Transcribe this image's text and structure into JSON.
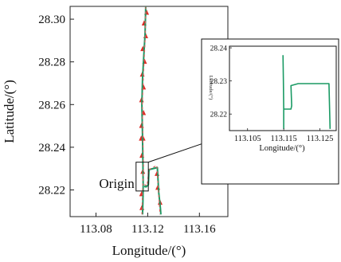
{
  "chart_data": [
    {
      "type": "line",
      "xlabel": "Longitude/(°)",
      "ylabel": "Latitude/(°)",
      "xlim": [
        113.06,
        113.182
      ],
      "ylim": [
        28.2075,
        28.306
      ],
      "x_ticks": [
        113.08,
        113.12,
        113.16
      ],
      "x_tick_labels": [
        "113.08",
        "113.12",
        "113.16"
      ],
      "y_ticks": [
        28.22,
        28.24,
        28.26,
        28.28,
        28.3
      ],
      "y_tick_labels": [
        "28.22",
        "28.24",
        "28.26",
        "28.28",
        "28.30"
      ],
      "grid": false,
      "annotation": {
        "text": "Origin",
        "x": 113.1155,
        "y": 28.2225
      },
      "origin_box": {
        "x": [
          113.111,
          113.1205
        ],
        "y": [
          28.2195,
          28.233
        ]
      },
      "series": [
        {
          "color": "#1a9a64",
          "style": "solid",
          "points": [
            [
              113.116,
              28.2085
            ],
            [
              113.1163,
              28.215
            ],
            [
              113.1165,
              28.222
            ],
            [
              113.1163,
              28.232
            ],
            [
              113.116,
              28.245
            ],
            [
              113.1155,
              28.26
            ],
            [
              113.116,
              28.272
            ],
            [
              113.117,
              28.283
            ],
            [
              113.118,
              28.293
            ],
            [
              113.1185,
              28.306
            ]
          ]
        },
        {
          "color": "#1a9a64",
          "style": "solid",
          "points": [
            [
              113.1178,
              28.222
            ],
            [
              113.118,
              28.2215
            ],
            [
              113.119,
              28.2215
            ],
            [
              113.1205,
              28.2225
            ],
            [
              113.121,
              28.2295
            ],
            [
              113.1275,
              28.2305
            ],
            [
              113.1285,
              28.219
            ],
            [
              113.1298,
              28.2115
            ],
            [
              113.1302,
              28.2085
            ]
          ]
        },
        {
          "color": "#e05a5a",
          "style": "dashed",
          "points": [
            [
              113.1155,
              28.2085
            ],
            [
              113.116,
              28.22
            ],
            [
              113.1168,
              28.23
            ],
            [
              113.1163,
              28.245
            ],
            [
              113.1158,
              28.26
            ],
            [
              113.1168,
              28.275
            ],
            [
              113.118,
              28.29
            ],
            [
              113.1185,
              28.306
            ]
          ]
        },
        {
          "color": "#e05a5a",
          "style": "dashed",
          "points": [
            [
              113.1175,
              28.2225
            ],
            [
              113.1195,
              28.222
            ],
            [
              113.121,
              28.2295
            ],
            [
              113.127,
              28.2315
            ],
            [
              113.1282,
              28.22
            ],
            [
              113.1295,
              28.2085
            ]
          ]
        },
        {
          "name": "arrows",
          "marker": "arrow",
          "color": "#e0302a",
          "points": [
            [
              113.1155,
              28.2115
            ],
            [
              113.1153,
              28.218
            ],
            [
              113.1162,
              28.2285
            ],
            [
              113.1155,
              28.236
            ],
            [
              113.115,
              28.244
            ],
            [
              113.1165,
              28.244
            ],
            [
              113.1152,
              28.25
            ],
            [
              113.1168,
              28.256
            ],
            [
              113.1152,
              28.262
            ],
            [
              113.1168,
              28.268
            ],
            [
              113.1158,
              28.274
            ],
            [
              113.1176,
              28.28
            ],
            [
              113.1162,
              28.286
            ],
            [
              113.1185,
              28.292
            ],
            [
              113.1172,
              28.298
            ],
            [
              113.1192,
              28.303
            ],
            [
              113.1272,
              28.2275
            ],
            [
              113.1278,
              28.221
            ],
            [
              113.1296,
              28.214
            ]
          ]
        }
      ]
    },
    {
      "type": "line",
      "xlabel": "Longitude/(°)",
      "ylabel": "Latitude/(°)",
      "xlim": [
        113.1,
        113.1295
      ],
      "ylim": [
        28.215,
        28.2405
      ],
      "x_ticks": [
        113.105,
        113.115,
        113.125
      ],
      "x_tick_labels": [
        "113.105",
        "113.115",
        "113.125"
      ],
      "y_ticks": [
        28.22,
        28.23,
        28.24
      ],
      "y_tick_labels": [
        "28.22",
        "28.23",
        "28.24"
      ],
      "grid": false,
      "series": [
        {
          "color": "#1a9a64",
          "style": "solid",
          "points": [
            [
              113.1148,
              28.2378
            ],
            [
              113.1149,
              28.2298
            ],
            [
              113.115,
              28.2215
            ],
            [
              113.115,
              28.2155
            ]
          ]
        },
        {
          "color": "#1a9a64",
          "style": "solid",
          "points": [
            [
              113.115,
              28.2215
            ],
            [
              113.117,
              28.2215
            ],
            [
              113.1172,
              28.2225
            ],
            [
              113.117,
              28.2286
            ],
            [
              113.119,
              28.2292
            ],
            [
              113.1275,
              28.2292
            ],
            [
              113.1278,
              28.2155
            ]
          ]
        }
      ]
    }
  ]
}
